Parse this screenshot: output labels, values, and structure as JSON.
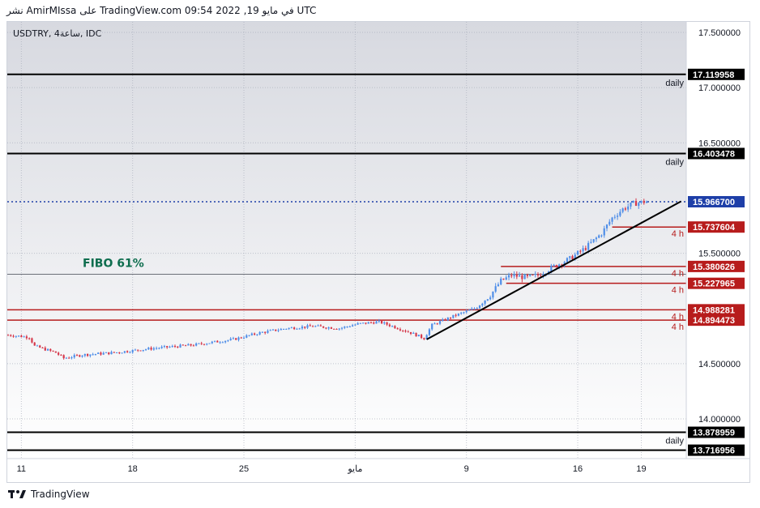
{
  "header": {
    "text": "نشر AmirMIssa على TradingView.com في مايو 19, 2022 09:54 UTC"
  },
  "symbol": {
    "text": "USDTRY, 4ساعة, IDC"
  },
  "footer": {
    "brand": "TradingView"
  },
  "colors": {
    "bg_top": "#d7d9e0",
    "bg_bottom": "#ffffff",
    "up": "#4f8ee8",
    "down": "#d5374a",
    "resistance": "#b71c1c",
    "black": "#000000",
    "current": "#1e3fa8",
    "fibo": "#0f6e4f"
  },
  "chart_data": {
    "type": "candlestick",
    "title": "",
    "y_ticks": [
      17.5,
      17.0,
      16.5,
      15.5,
      14.5,
      14.0
    ],
    "ylim": [
      13.69,
      17.63
    ],
    "x_ticks": [
      {
        "label": "11",
        "idx": 5
      },
      {
        "label": "18",
        "idx": 47
      },
      {
        "label": "25",
        "idx": 89
      },
      {
        "label": "مايو",
        "idx": 131
      },
      {
        "label": "9",
        "idx": 173
      },
      {
        "label": "16",
        "idx": 215
      },
      {
        "label": "19",
        "idx": 239
      }
    ],
    "horizontal_levels": [
      {
        "value": 17.119958,
        "label": "17.119958",
        "note": "daily",
        "style": "black"
      },
      {
        "value": 16.403478,
        "label": "16.403478",
        "note": "daily",
        "style": "black"
      },
      {
        "value": 15.9667,
        "label": "15.966700",
        "note": "",
        "style": "current"
      },
      {
        "value": 15.737604,
        "label": "15.737604",
        "note": "4 h",
        "style": "red"
      },
      {
        "value": 15.380626,
        "label": "15.380626",
        "note": "4 h",
        "style": "red"
      },
      {
        "value": 15.227965,
        "label": "15.227965",
        "note": "4 h",
        "style": "red"
      },
      {
        "value": 14.988281,
        "label": "14.988281",
        "note": "4 h",
        "style": "red"
      },
      {
        "value": 14.894473,
        "label": "14.894473",
        "note": "4 h",
        "style": "red"
      },
      {
        "value": 13.878959,
        "label": "13.878959",
        "note": "daily",
        "style": "black"
      },
      {
        "value": 13.716956,
        "label": "13.716956",
        "note": "",
        "style": "black"
      }
    ],
    "fibo": {
      "value": 15.31,
      "label": "FIBO 61%"
    },
    "trendline": {
      "from": {
        "idx": 158,
        "value": 14.72
      },
      "to": {
        "idx": 254,
        "value": 15.97
      }
    },
    "price_path": [
      [
        0,
        14.76
      ],
      [
        8,
        14.74
      ],
      [
        10,
        14.66
      ],
      [
        18,
        14.6
      ],
      [
        21,
        14.55
      ],
      [
        28,
        14.58
      ],
      [
        40,
        14.6
      ],
      [
        55,
        14.64
      ],
      [
        70,
        14.67
      ],
      [
        85,
        14.72
      ],
      [
        95,
        14.78
      ],
      [
        105,
        14.82
      ],
      [
        115,
        14.84
      ],
      [
        125,
        14.82
      ],
      [
        132,
        14.86
      ],
      [
        140,
        14.88
      ],
      [
        145,
        14.84
      ],
      [
        152,
        14.78
      ],
      [
        157,
        14.73
      ],
      [
        160,
        14.85
      ],
      [
        168,
        14.93
      ],
      [
        176,
        15.0
      ],
      [
        182,
        15.12
      ],
      [
        186,
        15.25
      ],
      [
        190,
        15.3
      ],
      [
        196,
        15.28
      ],
      [
        200,
        15.3
      ],
      [
        206,
        15.38
      ],
      [
        212,
        15.45
      ],
      [
        218,
        15.55
      ],
      [
        224,
        15.68
      ],
      [
        228,
        15.82
      ],
      [
        232,
        15.9
      ],
      [
        236,
        15.95
      ],
      [
        241,
        15.97
      ]
    ]
  }
}
